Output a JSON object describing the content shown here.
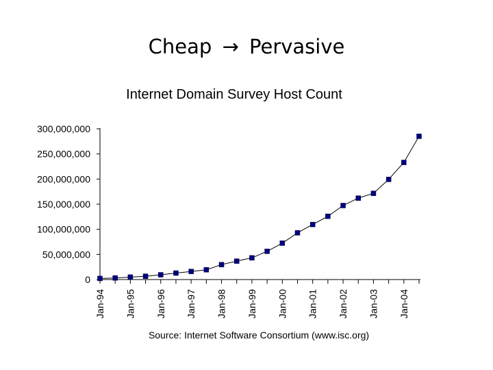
{
  "slide": {
    "title_left": "Cheap",
    "title_arrow": "→",
    "title_right": "Pervasive"
  },
  "chart_data": {
    "type": "line",
    "title": "Internet Domain Survey Host Count",
    "source": "Source: Internet Software Consortium (www.isc.org)",
    "xlabel": "",
    "ylabel": "",
    "ylim": [
      0,
      300000000
    ],
    "y_ticks": [
      0,
      50000000,
      100000000,
      150000000,
      200000000,
      250000000,
      300000000
    ],
    "y_tick_labels": [
      "0",
      "50,000,000",
      "100,000,000",
      "150,000,000",
      "200,000,000",
      "250,000,000",
      "300,000,000"
    ],
    "x_tick_labels": [
      "Jan-94",
      "Jan-95",
      "Jan-96",
      "Jan-97",
      "Jan-98",
      "Jan-99",
      "Jan-00",
      "Jan-01",
      "Jan-02",
      "Jan-03",
      "Jan-04"
    ],
    "grid": false,
    "series_color": "#000080",
    "series": [
      {
        "x": [
          "Jan-94",
          "Jul-94",
          "Jan-95",
          "Jul-95",
          "Jan-96",
          "Jul-96",
          "Jan-97",
          "Jul-97",
          "Jan-98",
          "Jul-98",
          "Jan-99",
          "Jul-99",
          "Jan-00",
          "Jul-00",
          "Jan-01",
          "Jul-01",
          "Jan-02",
          "Jul-02",
          "Jan-03",
          "Jul-03",
          "Jan-04",
          "Jul-04"
        ],
        "values": [
          2200000,
          3200000,
          4900000,
          6600000,
          9500000,
          12900000,
          16100000,
          19500000,
          29700000,
          36700000,
          43200000,
          56200000,
          72400000,
          93000000,
          109600000,
          125900000,
          147300000,
          162100000,
          171600000,
          199300000,
          233100000,
          285100000
        ]
      }
    ]
  }
}
